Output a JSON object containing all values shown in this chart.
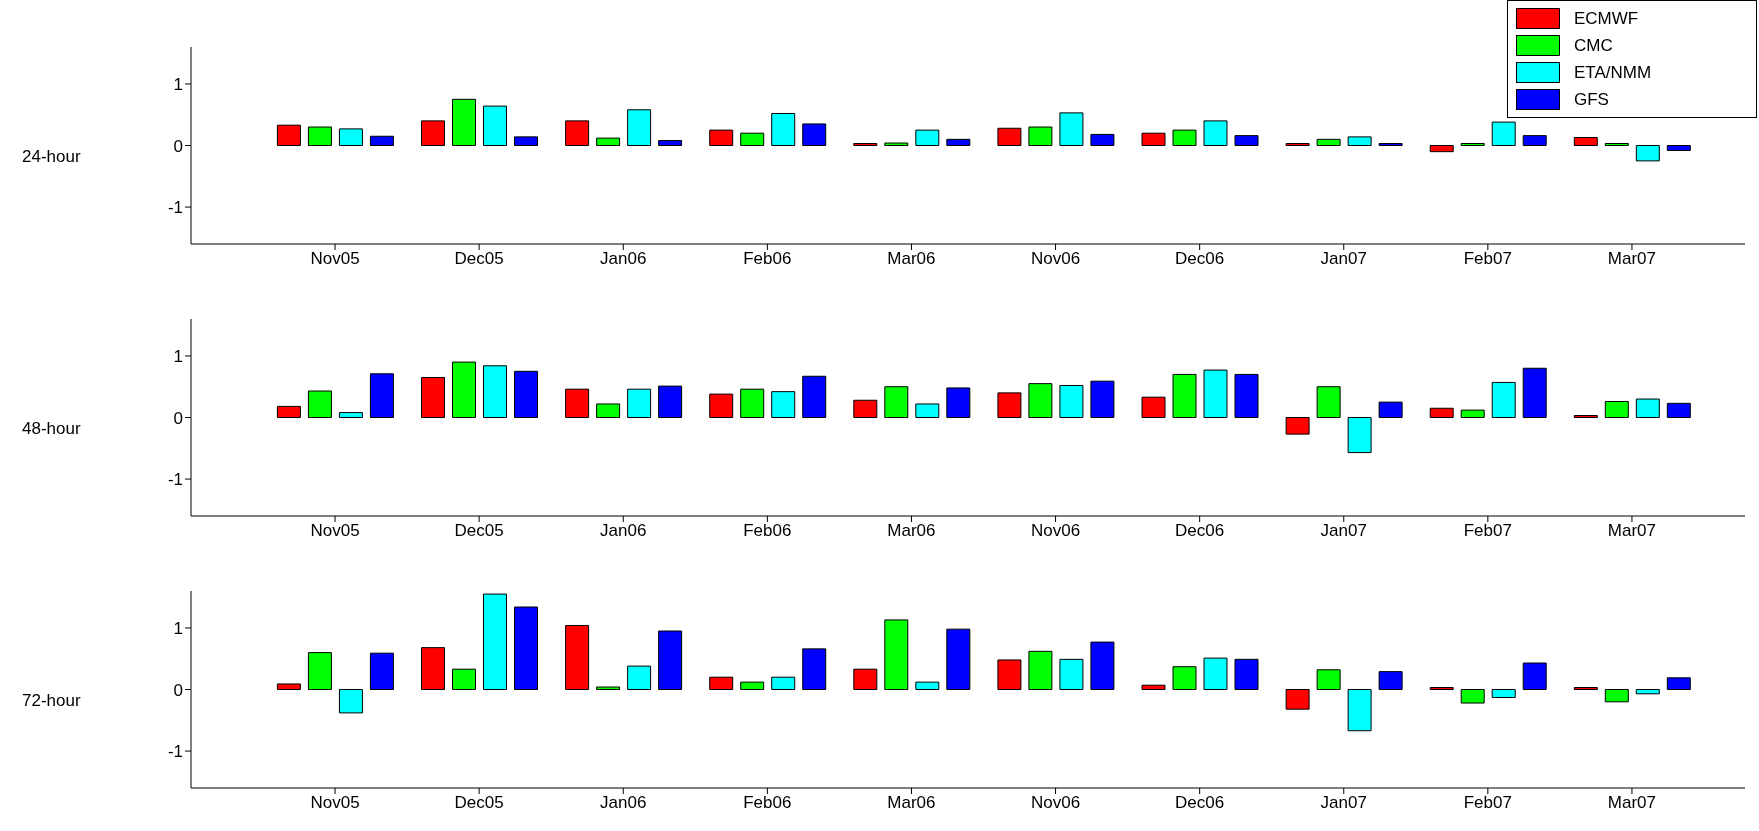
{
  "chart_data": [
    {
      "type": "bar",
      "ylabel": "24-hour",
      "categories": [
        "Nov05",
        "Dec05",
        "Jan06",
        "Feb06",
        "Mar06",
        "Nov06",
        "Dec06",
        "Jan07",
        "Feb07",
        "Mar07"
      ],
      "ylim": [
        -1.6,
        1.6
      ],
      "yticks": [
        -1,
        0,
        1
      ],
      "grid": false,
      "legend": "top right",
      "series": [
        {
          "name": "ECMWF",
          "color": "#ff0000",
          "values": [
            0.33,
            0.4,
            0.4,
            0.25,
            0.03,
            0.28,
            0.2,
            0.0,
            -0.1,
            0.13
          ]
        },
        {
          "name": "CMC",
          "color": "#00ff00",
          "values": [
            0.3,
            0.75,
            0.12,
            0.2,
            0.04,
            0.3,
            0.25,
            0.1,
            0.03,
            0.01
          ]
        },
        {
          "name": "ETA/NMM",
          "color": "#00ffff",
          "values": [
            0.27,
            0.64,
            0.58,
            0.52,
            0.25,
            0.53,
            0.4,
            0.14,
            0.38,
            -0.25
          ]
        },
        {
          "name": "GFS",
          "color": "#0000ff",
          "values": [
            0.15,
            0.14,
            0.08,
            0.35,
            0.1,
            0.18,
            0.16,
            0.02,
            0.16,
            -0.08
          ]
        }
      ]
    },
    {
      "type": "bar",
      "ylabel": "48-hour",
      "categories": [
        "Nov05",
        "Dec05",
        "Jan06",
        "Feb06",
        "Mar06",
        "Nov06",
        "Dec06",
        "Jan07",
        "Feb07",
        "Mar07"
      ],
      "ylim": [
        -1.6,
        1.6
      ],
      "yticks": [
        -1,
        0,
        1
      ],
      "grid": false,
      "series": [
        {
          "color": "#ff0000",
          "values": [
            0.18,
            0.65,
            0.46,
            0.38,
            0.28,
            0.4,
            0.33,
            -0.27,
            0.15,
            0.03
          ]
        },
        {
          "color": "#00ff00",
          "values": [
            0.43,
            0.9,
            0.22,
            0.46,
            0.5,
            0.55,
            0.7,
            0.5,
            0.12,
            0.26
          ]
        },
        {
          "color": "#00ffff",
          "values": [
            0.08,
            0.84,
            0.46,
            0.42,
            0.22,
            0.52,
            0.77,
            -0.57,
            0.57,
            0.3
          ]
        },
        {
          "color": "#0000ff",
          "values": [
            0.71,
            0.75,
            0.51,
            0.67,
            0.48,
            0.59,
            0.7,
            0.25,
            0.8,
            0.23
          ]
        }
      ]
    },
    {
      "type": "bar",
      "ylabel": "72-hour",
      "categories": [
        "Nov05",
        "Dec05",
        "Jan06",
        "Feb06",
        "Mar06",
        "Nov06",
        "Dec06",
        "Jan07",
        "Feb07",
        "Mar07"
      ],
      "ylim": [
        -1.6,
        1.6
      ],
      "yticks": [
        -1,
        0,
        1
      ],
      "grid": false,
      "series": [
        {
          "color": "#ff0000",
          "values": [
            0.09,
            0.68,
            1.04,
            0.2,
            0.33,
            0.48,
            0.07,
            -0.32,
            0.0,
            0.03
          ]
        },
        {
          "color": "#00ff00",
          "values": [
            0.6,
            0.33,
            0.04,
            0.12,
            1.13,
            0.62,
            0.37,
            0.32,
            -0.22,
            -0.2
          ]
        },
        {
          "color": "#00ffff",
          "values": [
            -0.38,
            1.55,
            0.38,
            0.2,
            0.12,
            0.49,
            0.51,
            -0.67,
            -0.13,
            -0.07
          ]
        },
        {
          "color": "#0000ff",
          "values": [
            0.59,
            1.34,
            0.95,
            0.66,
            0.98,
            0.77,
            0.49,
            0.29,
            0.43,
            0.19
          ]
        }
      ]
    }
  ]
}
